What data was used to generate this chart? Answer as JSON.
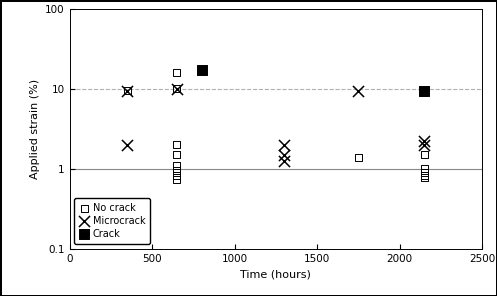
{
  "no_crack": {
    "x": [
      350,
      650,
      650,
      650,
      650,
      650,
      650,
      650,
      650,
      1750,
      2150,
      2150,
      2150,
      2150,
      2150
    ],
    "y": [
      9.5,
      16,
      10,
      2.0,
      1.5,
      1.1,
      0.95,
      0.82,
      0.73,
      1.4,
      1.5,
      1.0,
      0.9,
      0.83,
      0.78
    ]
  },
  "microcrack": {
    "x": [
      350,
      350,
      650,
      1300,
      1300,
      1300,
      1750,
      2150,
      2150
    ],
    "y": [
      9.5,
      2.0,
      10,
      2.0,
      1.5,
      1.25,
      9.5,
      2.2,
      2.0
    ]
  },
  "crack": {
    "x": [
      800,
      2150
    ],
    "y": [
      17,
      9.5
    ]
  },
  "hline1_y": 10,
  "hline2_y": 1,
  "xlabel": "Time (hours)",
  "ylabel": "Applied strain (%)",
  "xlim": [
    0,
    2500
  ],
  "ylim_log": [
    0.1,
    100
  ],
  "background_color": "#ffffff"
}
